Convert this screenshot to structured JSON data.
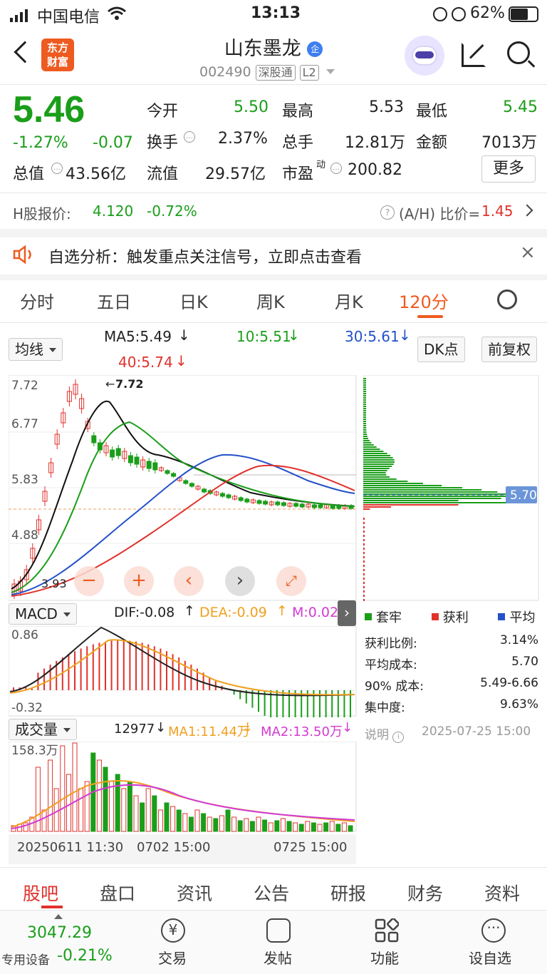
{
  "status_bar": {
    "carrier": "中国电信",
    "time": "13:13",
    "battery": "62%"
  },
  "header": {
    "title": "山东墨龙",
    "badge": "企",
    "logo_text_1": "东方",
    "logo_text_2": "财富",
    "code": "002490",
    "exchange_tag": "深股通",
    "level_tag": "L2"
  },
  "quote": {
    "price": "5.46",
    "change_pct": "-1.27%",
    "change": "-0.07",
    "open_label": "今开",
    "open": "5.50",
    "high_label": "最高",
    "high": "5.53",
    "low_label": "最低",
    "low": "5.45",
    "turnover_label": "换手",
    "turnover": "2.37%",
    "volume_label": "总手",
    "volume": "12.81万",
    "amount_label": "金额",
    "amount": "7013万",
    "mktcap_label": "总值",
    "mktcap": "43.56亿",
    "float_label": "流值",
    "float_cap": "29.57亿",
    "pe_label": "市盈",
    "pe_sup": "动",
    "pe": "200.82",
    "more_label": "更多"
  },
  "hshare": {
    "label": "H股报价:",
    "price": "4.120",
    "change_pct": "-0.72%",
    "ah_label": "(A/H) 比价=",
    "ah_value": "1.45"
  },
  "notice": {
    "text": "自选分析：触发重点关注信号，立即点击查看"
  },
  "tabs": [
    "分时",
    "五日",
    "日K",
    "周K",
    "月K",
    "120分"
  ],
  "active_tab": "120分",
  "ma_row": {
    "dropdown": "均线",
    "ma5": "MA5:5.49",
    "ma10": "10:5.51",
    "ma30": "30:5.61",
    "ma40": "40:5.74",
    "dk_label": "DK点",
    "fq_label": "前复权"
  },
  "price_chart": {
    "y_ticks": [
      "7.72",
      "6.77",
      "5.83",
      "4.88"
    ],
    "low_label": "3.93",
    "high_label": "7.72",
    "cost_label": "5.70"
  },
  "macd": {
    "dropdown": "MACD",
    "dif": "DIF:-0.08",
    "dea": "DEA:-0.09",
    "m": "M:0.02",
    "top": "0.86",
    "bottom": "-0.32"
  },
  "chip": {
    "legend": [
      "套牢",
      "获利",
      "平均"
    ],
    "rows": [
      {
        "label": "获利比例:",
        "value": "3.14%"
      },
      {
        "label": "平均成本:",
        "value": "5.70"
      },
      {
        "label": "90% 成本:",
        "value": "5.49-6.66"
      },
      {
        "label": "集中度:",
        "value": "9.63%"
      }
    ],
    "note": "说明",
    "date": "2025-07-25 15:00"
  },
  "volume": {
    "dropdown": "成交量",
    "vol": "12977",
    "ma1": "MA1:11.44万",
    "ma2": "MA2:13.50万",
    "top": "158.3万"
  },
  "x_axis": {
    "left": "20250611 11:30",
    "mid": "0702 15:00",
    "right": "0725 15:00"
  },
  "bottom_tabs": [
    "股吧",
    "盘口",
    "资讯",
    "公告",
    "研报",
    "财务",
    "资料"
  ],
  "dock": {
    "index_value": "3047.29",
    "index_label": "专用设备",
    "index_change": "-0.21%",
    "items": [
      "交易",
      "发帖",
      "功能",
      "设自选"
    ]
  },
  "colors": {
    "up": "#e0322c",
    "down": "#1a9e1a",
    "accent": "#ee5b20"
  }
}
